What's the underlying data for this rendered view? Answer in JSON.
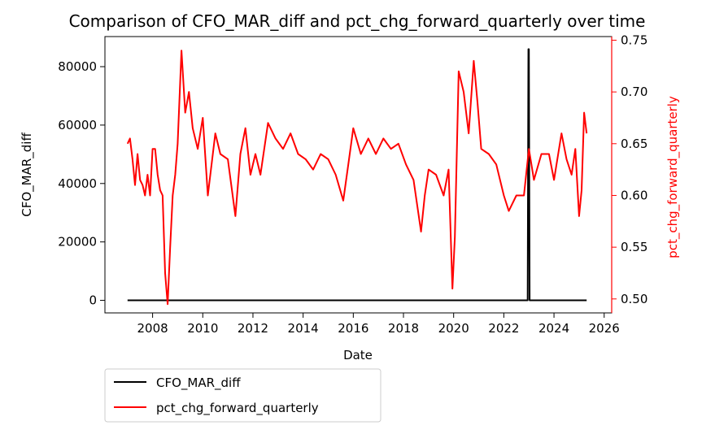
{
  "chart_data": {
    "type": "line",
    "title": "Comparison of CFO_MAR_diff and pct_chg_forward_quarterly over time",
    "xlabel": "Date",
    "ylabel_left": "CFO_MAR_diff",
    "ylabel_right": "pct_chg_forward_quarterly",
    "x_ticks": [
      "2008",
      "2010",
      "2012",
      "2014",
      "2016",
      "2018",
      "2020",
      "2022",
      "2024",
      "2026"
    ],
    "y_left_ticks": [
      "0",
      "20000",
      "40000",
      "60000",
      "80000"
    ],
    "y_right_ticks": [
      "0.50",
      "0.55",
      "0.60",
      "0.65",
      "0.70",
      "0.75"
    ],
    "xlim": [
      2006.1,
      2026.3
    ],
    "ylim_left": [
      -4300,
      90300
    ],
    "ylim_right": [
      0.4865,
      0.7535
    ],
    "grid": false,
    "legend_position": "below-left",
    "colors": {
      "left_axis": "#000000",
      "right_axis": "#ff0000"
    },
    "series": [
      {
        "name": "CFO_MAR_diff",
        "axis": "left",
        "color": "#000000",
        "x": [
          2007.0,
          2022.95,
          2022.98,
          2023.0,
          2023.03,
          2025.3
        ],
        "y": [
          0,
          0,
          86000,
          86000,
          0,
          0
        ]
      },
      {
        "name": "pct_chg_forward_quarterly",
        "axis": "right",
        "color": "#ff0000",
        "x": [
          2007.0,
          2007.1,
          2007.2,
          2007.3,
          2007.4,
          2007.5,
          2007.6,
          2007.7,
          2007.8,
          2007.9,
          2008.0,
          2008.1,
          2008.2,
          2008.3,
          2008.4,
          2008.5,
          2008.6,
          2008.7,
          2008.8,
          2008.9,
          2009.0,
          2009.15,
          2009.3,
          2009.45,
          2009.6,
          2009.8,
          2010.0,
          2010.2,
          2010.5,
          2010.7,
          2011.0,
          2011.3,
          2011.5,
          2011.7,
          2011.9,
          2012.1,
          2012.3,
          2012.6,
          2012.9,
          2013.2,
          2013.5,
          2013.8,
          2014.1,
          2014.4,
          2014.7,
          2015.0,
          2015.3,
          2015.6,
          2015.8,
          2016.0,
          2016.3,
          2016.6,
          2016.9,
          2017.2,
          2017.5,
          2017.8,
          2018.1,
          2018.4,
          2018.7,
          2018.85,
          2019.0,
          2019.3,
          2019.6,
          2019.8,
          2019.95,
          2020.05,
          2020.2,
          2020.4,
          2020.6,
          2020.8,
          2020.95,
          2021.1,
          2021.4,
          2021.7,
          2022.0,
          2022.2,
          2022.5,
          2022.8,
          2023.0,
          2023.2,
          2023.5,
          2023.8,
          2024.0,
          2024.3,
          2024.5,
          2024.7,
          2024.85,
          2025.0,
          2025.1,
          2025.2,
          2025.3
        ],
        "y": [
          0.65,
          0.655,
          0.635,
          0.61,
          0.64,
          0.615,
          0.61,
          0.6,
          0.62,
          0.6,
          0.645,
          0.645,
          0.62,
          0.605,
          0.6,
          0.525,
          0.495,
          0.55,
          0.6,
          0.62,
          0.65,
          0.74,
          0.68,
          0.7,
          0.665,
          0.645,
          0.675,
          0.6,
          0.66,
          0.64,
          0.635,
          0.58,
          0.64,
          0.665,
          0.62,
          0.64,
          0.62,
          0.67,
          0.655,
          0.645,
          0.66,
          0.64,
          0.635,
          0.625,
          0.64,
          0.635,
          0.62,
          0.595,
          0.63,
          0.665,
          0.64,
          0.655,
          0.64,
          0.655,
          0.645,
          0.65,
          0.63,
          0.615,
          0.565,
          0.6,
          0.625,
          0.62,
          0.6,
          0.625,
          0.51,
          0.56,
          0.72,
          0.7,
          0.66,
          0.73,
          0.69,
          0.645,
          0.64,
          0.63,
          0.6,
          0.585,
          0.6,
          0.6,
          0.645,
          0.615,
          0.64,
          0.64,
          0.615,
          0.66,
          0.635,
          0.62,
          0.645,
          0.58,
          0.605,
          0.68,
          0.66
        ]
      }
    ]
  }
}
